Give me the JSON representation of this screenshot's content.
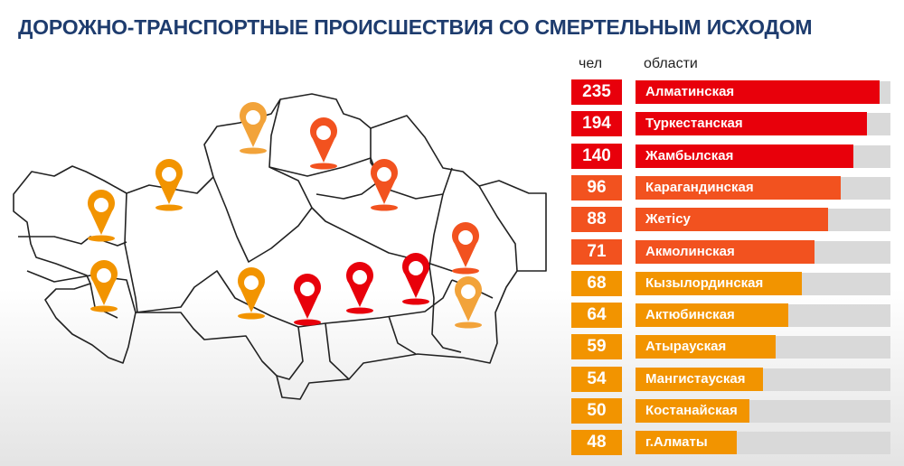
{
  "title": "ДОРОЖНО-ТРАНСПОРТНЫЕ ПРОИСШЕСТВИЯ СО СМЕРТЕЛЬНЫМ ИСХОДОМ",
  "colors": {
    "title": "#1e3c6e",
    "red": "#e8000b",
    "orange_red": "#f2521f",
    "orange": "#f29400",
    "track": "#d9d9d9"
  },
  "chart_data": {
    "type": "bar",
    "orientation": "horizontal",
    "title": "ДОРОЖНО-ТРАНСПОРТНЫЕ ПРОИСШЕСТВИЯ СО СМЕРТЕЛЬНЫМ ИСХОДОМ",
    "value_header": "чел",
    "category_header": "области",
    "categories": [
      "Алматинская",
      "Туркестанская",
      "Жамбылская",
      "Карагандинская",
      "Жетісу",
      "Акмолинская",
      "Кызылординская",
      "Актюбинская",
      "Атырауская",
      "Мангистауская",
      "Костанайская",
      "г.Алматы"
    ],
    "values": [
      235,
      194,
      140,
      96,
      88,
      71,
      68,
      64,
      59,
      54,
      50,
      48
    ],
    "bar_colors": [
      "#e8000b",
      "#e8000b",
      "#e8000b",
      "#f2521f",
      "#f2521f",
      "#f2521f",
      "#f29400",
      "#f29400",
      "#f29400",
      "#f29400",
      "#f29400",
      "#f29400"
    ],
    "grid": false,
    "legend": "none"
  },
  "map": {
    "pin_icon": "map-pin-icon",
    "pins": [
      "#f2a33a",
      "#f2521f",
      "#f29400",
      "#f29400",
      "#f2521f",
      "#f29400",
      "#f29400",
      "#e8000b",
      "#e8000b",
      "#e8000b",
      "#f2521f",
      "#f2a33a"
    ]
  }
}
